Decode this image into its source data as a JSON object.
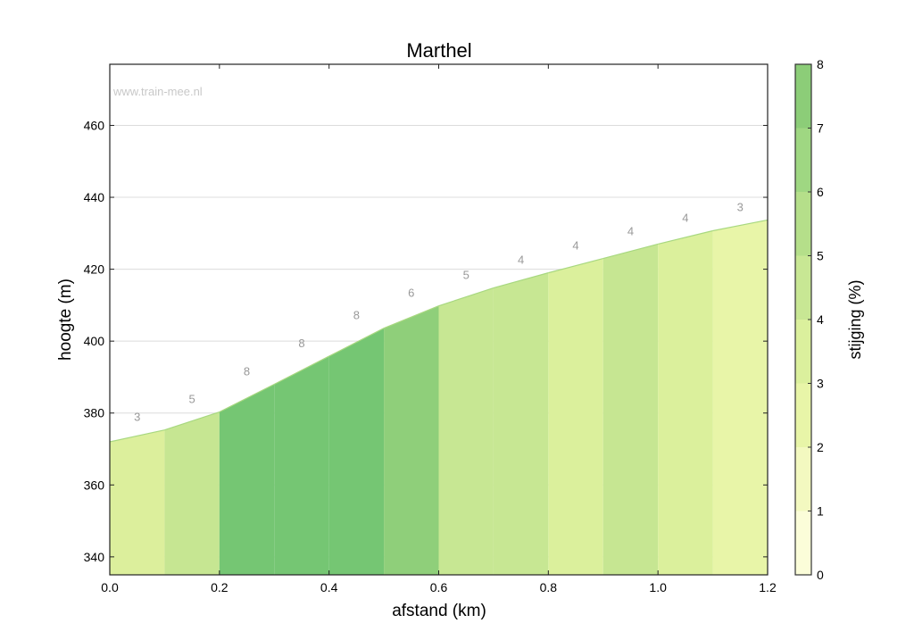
{
  "chart_data": {
    "type": "area",
    "title": "Marthel",
    "xlabel": "afstand (km)",
    "ylabel": "hoogte (m)",
    "watermark": "www.train-mee.nl",
    "xlim": [
      0,
      1.2
    ],
    "ylim": [
      335,
      477
    ],
    "grid": true,
    "x_ticks": [
      "0.0",
      "0.2",
      "0.4",
      "0.6",
      "0.8",
      "1.0",
      "1.2"
    ],
    "y_ticks": [
      "340",
      "360",
      "380",
      "400",
      "420",
      "440",
      "460"
    ],
    "x": [
      0.0,
      0.1,
      0.2,
      0.3,
      0.4,
      0.5,
      0.6,
      0.7,
      0.8,
      0.9,
      1.0,
      1.1,
      1.2
    ],
    "elevation": [
      372.0,
      375.3,
      380.3,
      388.0,
      395.8,
      403.6,
      409.8,
      414.8,
      419.0,
      423.0,
      427.0,
      430.7,
      433.7
    ],
    "segment_gradient_labels": [
      "3",
      "5",
      "8",
      "8",
      "8",
      "6",
      "5",
      "4",
      "4",
      "4",
      "4",
      "3"
    ],
    "segment_colors": [
      "#dcef9c",
      "#c6e692",
      "#75c673",
      "#75c673",
      "#75c673",
      "#8fcf7a",
      "#c7e793",
      "#c7e793",
      "#dbf09c",
      "#c6e692",
      "#dbf09c",
      "#e8f5a8"
    ],
    "colorbar": {
      "label": "stijging (%)",
      "ticks": [
        "0",
        "1",
        "2",
        "3",
        "4",
        "5",
        "6",
        "7",
        "8"
      ],
      "range": [
        0,
        8
      ],
      "colors": [
        "#fbfdd9",
        "#f3f9c0",
        "#e8f5a8",
        "#dbf09d",
        "#c8e794",
        "#b5df8a",
        "#9fd782",
        "#8ccd78",
        "#75c673"
      ]
    }
  }
}
